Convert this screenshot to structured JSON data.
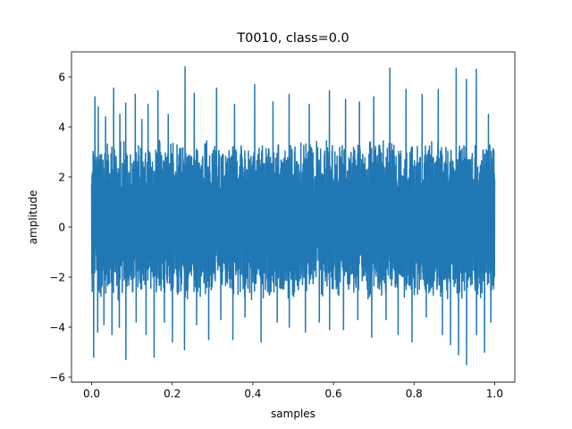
{
  "chart_data": {
    "type": "line",
    "title": "T0010, class=0.0",
    "xlabel": "samples",
    "ylabel": "amplitude",
    "xlim": [
      -0.05,
      1.05
    ],
    "ylim": [
      -6.2,
      7.0
    ],
    "xticks": [
      0.0,
      0.2,
      0.4,
      0.6,
      0.8,
      1.0
    ],
    "xtick_labels": [
      "0.0",
      "0.2",
      "0.4",
      "0.6",
      "0.8",
      "1.0"
    ],
    "yticks": [
      -6,
      -4,
      -2,
      0,
      2,
      4,
      6
    ],
    "ytick_labels": [
      "−6",
      "−4",
      "−2",
      "0",
      "2",
      "4",
      "6"
    ],
    "grid": false,
    "legend": "none",
    "series": [
      {
        "color": "#1f77b4",
        "x_range": [
          0.0,
          1.0
        ],
        "core_band": [
          -2.0,
          2.6
        ],
        "spike_peaks": [
          {
            "x": 0.008,
            "y": 5.2
          },
          {
            "x": 0.017,
            "y": 4.8
          },
          {
            "x": 0.035,
            "y": 4.4
          },
          {
            "x": 0.055,
            "y": 5.55
          },
          {
            "x": 0.07,
            "y": 4.5
          },
          {
            "x": 0.085,
            "y": 4.95
          },
          {
            "x": 0.108,
            "y": 5.3
          },
          {
            "x": 0.125,
            "y": 4.3
          },
          {
            "x": 0.14,
            "y": 4.9
          },
          {
            "x": 0.165,
            "y": 5.45
          },
          {
            "x": 0.19,
            "y": 4.5
          },
          {
            "x": 0.232,
            "y": 6.4
          },
          {
            "x": 0.255,
            "y": 5.35
          },
          {
            "x": 0.31,
            "y": 5.55
          },
          {
            "x": 0.355,
            "y": 4.9
          },
          {
            "x": 0.405,
            "y": 5.7
          },
          {
            "x": 0.45,
            "y": 5.0
          },
          {
            "x": 0.49,
            "y": 5.3
          },
          {
            "x": 0.54,
            "y": 4.9
          },
          {
            "x": 0.59,
            "y": 5.45
          },
          {
            "x": 0.63,
            "y": 5.1
          },
          {
            "x": 0.665,
            "y": 5.0
          },
          {
            "x": 0.7,
            "y": 5.2
          },
          {
            "x": 0.74,
            "y": 6.35
          },
          {
            "x": 0.78,
            "y": 5.5
          },
          {
            "x": 0.82,
            "y": 5.3
          },
          {
            "x": 0.86,
            "y": 5.5
          },
          {
            "x": 0.905,
            "y": 6.35
          },
          {
            "x": 0.93,
            "y": 5.9
          },
          {
            "x": 0.955,
            "y": 6.3
          },
          {
            "x": 0.985,
            "y": 4.5
          }
        ],
        "trough_peaks": [
          {
            "x": 0.005,
            "y": -5.2
          },
          {
            "x": 0.015,
            "y": -4.2
          },
          {
            "x": 0.03,
            "y": -3.9
          },
          {
            "x": 0.05,
            "y": -4.3
          },
          {
            "x": 0.068,
            "y": -4.0
          },
          {
            "x": 0.085,
            "y": -5.3
          },
          {
            "x": 0.11,
            "y": -3.8
          },
          {
            "x": 0.135,
            "y": -4.3
          },
          {
            "x": 0.155,
            "y": -5.2
          },
          {
            "x": 0.18,
            "y": -3.8
          },
          {
            "x": 0.2,
            "y": -4.6
          },
          {
            "x": 0.23,
            "y": -4.9
          },
          {
            "x": 0.26,
            "y": -3.9
          },
          {
            "x": 0.29,
            "y": -4.5
          },
          {
            "x": 0.32,
            "y": -3.7
          },
          {
            "x": 0.35,
            "y": -4.5
          },
          {
            "x": 0.38,
            "y": -3.6
          },
          {
            "x": 0.42,
            "y": -4.6
          },
          {
            "x": 0.46,
            "y": -3.8
          },
          {
            "x": 0.49,
            "y": -4.0
          },
          {
            "x": 0.53,
            "y": -4.2
          },
          {
            "x": 0.565,
            "y": -3.8
          },
          {
            "x": 0.59,
            "y": -4.1
          },
          {
            "x": 0.625,
            "y": -4.1
          },
          {
            "x": 0.66,
            "y": -3.7
          },
          {
            "x": 0.695,
            "y": -4.4
          },
          {
            "x": 0.73,
            "y": -3.7
          },
          {
            "x": 0.76,
            "y": -4.3
          },
          {
            "x": 0.795,
            "y": -4.6
          },
          {
            "x": 0.83,
            "y": -3.6
          },
          {
            "x": 0.87,
            "y": -4.3
          },
          {
            "x": 0.89,
            "y": -4.7
          },
          {
            "x": 0.91,
            "y": -5.1
          },
          {
            "x": 0.93,
            "y": -5.5
          },
          {
            "x": 0.955,
            "y": -4.3
          },
          {
            "x": 0.975,
            "y": -5.0
          },
          {
            "x": 0.99,
            "y": -3.8
          }
        ]
      }
    ]
  }
}
